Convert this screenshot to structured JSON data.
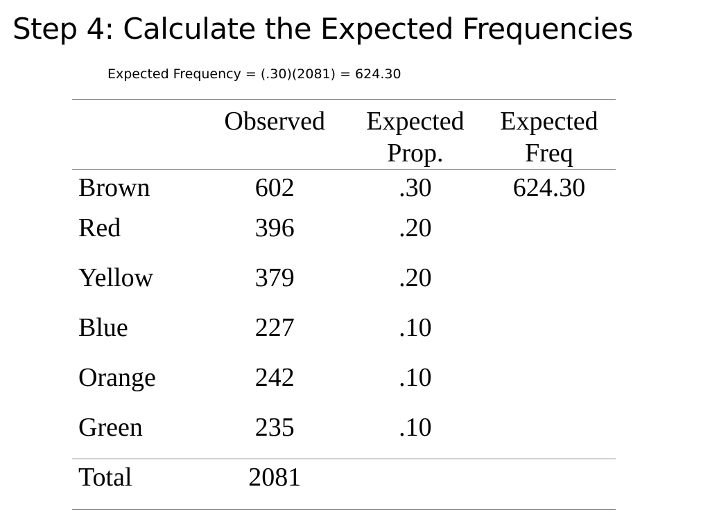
{
  "slide": {
    "title": "Step 4: Calculate the Expected Frequencies",
    "formula": "Expected Frequency = (.30)(2081) = 624.30"
  },
  "table": {
    "headers": {
      "label": "",
      "observed": "Observed",
      "expected_prop_line1": "Expected",
      "expected_prop_line2": "Prop.",
      "expected_freq_line1": "Expected",
      "expected_freq_line2": "Freq"
    },
    "rows": [
      {
        "label": "Brown",
        "observed": "602",
        "expected_prop": ".30",
        "expected_freq": "624.30"
      },
      {
        "label": "Red",
        "observed": "396",
        "expected_prop": ".20",
        "expected_freq": ""
      },
      {
        "label": "Yellow",
        "observed": "379",
        "expected_prop": ".20",
        "expected_freq": ""
      },
      {
        "label": "Blue",
        "observed": "227",
        "expected_prop": ".10",
        "expected_freq": ""
      },
      {
        "label": "Orange",
        "observed": "242",
        "expected_prop": ".10",
        "expected_freq": ""
      },
      {
        "label": "Green",
        "observed": "235",
        "expected_prop": ".10",
        "expected_freq": ""
      }
    ],
    "total": {
      "label": "Total",
      "observed": "2081",
      "expected_prop": "",
      "expected_freq": ""
    }
  }
}
